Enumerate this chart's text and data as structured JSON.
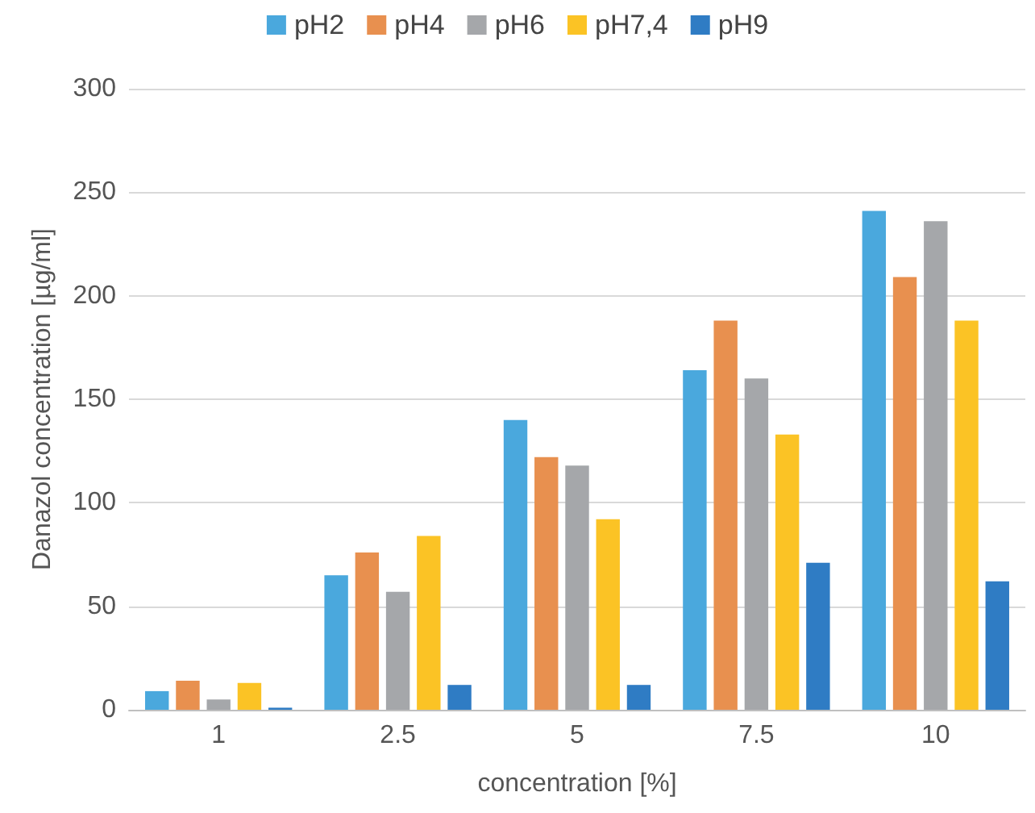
{
  "chart_data": {
    "type": "bar",
    "xlabel": "concentration [%]",
    "ylabel": "Danazol concentration [µg/ml]",
    "categories": [
      "1",
      "2.5",
      "5",
      "7.5",
      "10"
    ],
    "series": [
      {
        "name": "pH2",
        "color": "#4aa8dd",
        "values": [
          9,
          65,
          140,
          164,
          241
        ]
      },
      {
        "name": "pH4",
        "color": "#e8904f",
        "values": [
          14,
          76,
          122,
          188,
          209
        ]
      },
      {
        "name": "pH6",
        "color": "#a5a7aa",
        "values": [
          5,
          57,
          118,
          160,
          236
        ]
      },
      {
        "name": "pH7,4",
        "color": "#fbc325",
        "values": [
          13,
          84,
          92,
          133,
          188
        ]
      },
      {
        "name": "pH9",
        "color": "#2f7cc4",
        "values": [
          1,
          12,
          12,
          71,
          62
        ]
      }
    ],
    "ylim": [
      0,
      300
    ],
    "yticks": [
      0,
      50,
      100,
      150,
      200,
      250,
      300
    ],
    "grid": "y",
    "legend": "top"
  }
}
